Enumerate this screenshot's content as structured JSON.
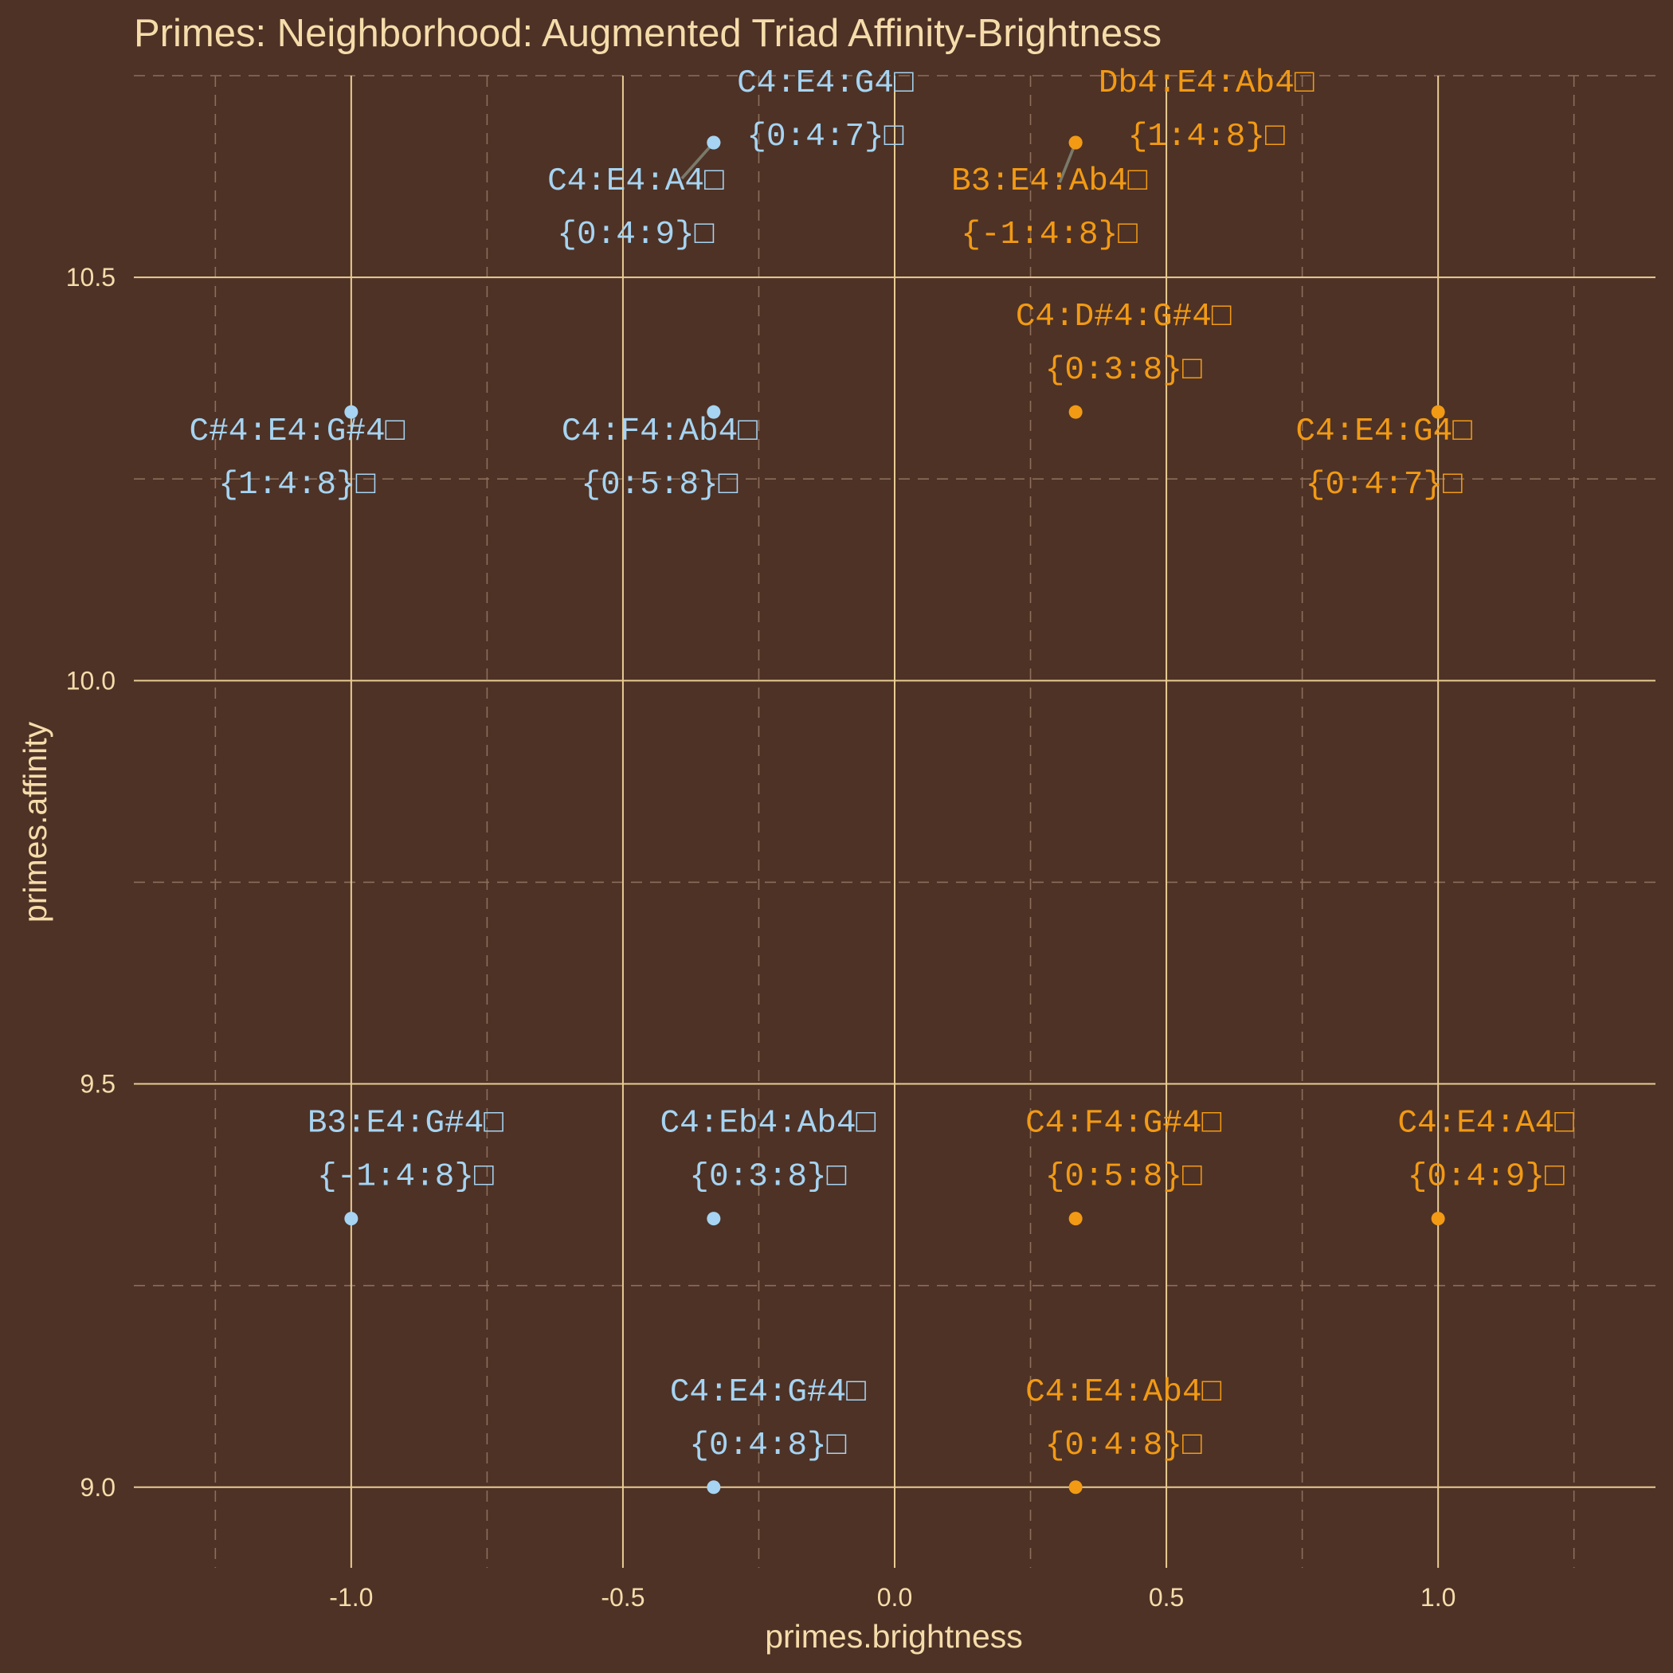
{
  "chart_data": {
    "type": "scatter",
    "title": "Primes: Neighborhood: Augmented Triad Affinity-Brightness",
    "xlabel": "primes.brightness",
    "ylabel": "primes.affinity",
    "xlim": [
      -1.4,
      1.4
    ],
    "ylim": [
      8.9,
      10.75
    ],
    "x_ticks": [
      "-1.0",
      "-0.5",
      "0.0",
      "0.5",
      "1.0"
    ],
    "y_ticks": [
      "9.0",
      "9.5",
      "10.0",
      "10.5"
    ],
    "grid": true,
    "legend": "none",
    "colors": {
      "background": "#4e3226",
      "blue": "#a6d4f2",
      "orange": "#f29a14",
      "text": "#f5dcaa"
    },
    "points": [
      {
        "x": -0.333,
        "y": 10.667,
        "color": "blue",
        "line1": "C4:E4:G4□",
        "line2": "{0:4:7}□"
      },
      {
        "x": -0.333,
        "y": 10.667,
        "color": "blue",
        "line1": "C4:E4:A4□",
        "line2": "{0:4:9}□"
      },
      {
        "x": 0.333,
        "y": 10.667,
        "color": "orange",
        "line1": "Db4:E4:Ab4□",
        "line2": "{1:4:8}□"
      },
      {
        "x": 0.333,
        "y": 10.667,
        "color": "orange",
        "line1": "B3:E4:Ab4□",
        "line2": "{-1:4:8}□"
      },
      {
        "x": 0.333,
        "y": 10.333,
        "color": "orange",
        "line1": "C4:D#4:G#4□",
        "line2": "{0:3:8}□"
      },
      {
        "x": -1.0,
        "y": 10.333,
        "color": "blue",
        "line1": "C#4:E4:G#4□",
        "line2": "{1:4:8}□"
      },
      {
        "x": -0.333,
        "y": 10.333,
        "color": "blue",
        "line1": "C4:F4:Ab4□",
        "line2": "{0:5:8}□"
      },
      {
        "x": 1.0,
        "y": 10.333,
        "color": "orange",
        "line1": "C4:E4:G4□",
        "line2": "{0:4:7}□"
      },
      {
        "x": -1.0,
        "y": 9.333,
        "color": "blue",
        "line1": "B3:E4:G#4□",
        "line2": "{-1:4:8}□"
      },
      {
        "x": -0.333,
        "y": 9.333,
        "color": "blue",
        "line1": "C4:Eb4:Ab4□",
        "line2": "{0:3:8}□"
      },
      {
        "x": 0.333,
        "y": 9.333,
        "color": "orange",
        "line1": "C4:F4:G#4□",
        "line2": "{0:5:8}□"
      },
      {
        "x": 1.0,
        "y": 9.333,
        "color": "orange",
        "line1": "C4:E4:A4□",
        "line2": "{0:4:9}□"
      },
      {
        "x": -0.333,
        "y": 9.0,
        "color": "blue",
        "line1": "C4:E4:G#4□",
        "line2": "{0:4:8}□"
      },
      {
        "x": 0.333,
        "y": 9.0,
        "color": "orange",
        "line1": "C4:E4:Ab4□",
        "line2": "{0:4:8}□"
      }
    ]
  }
}
